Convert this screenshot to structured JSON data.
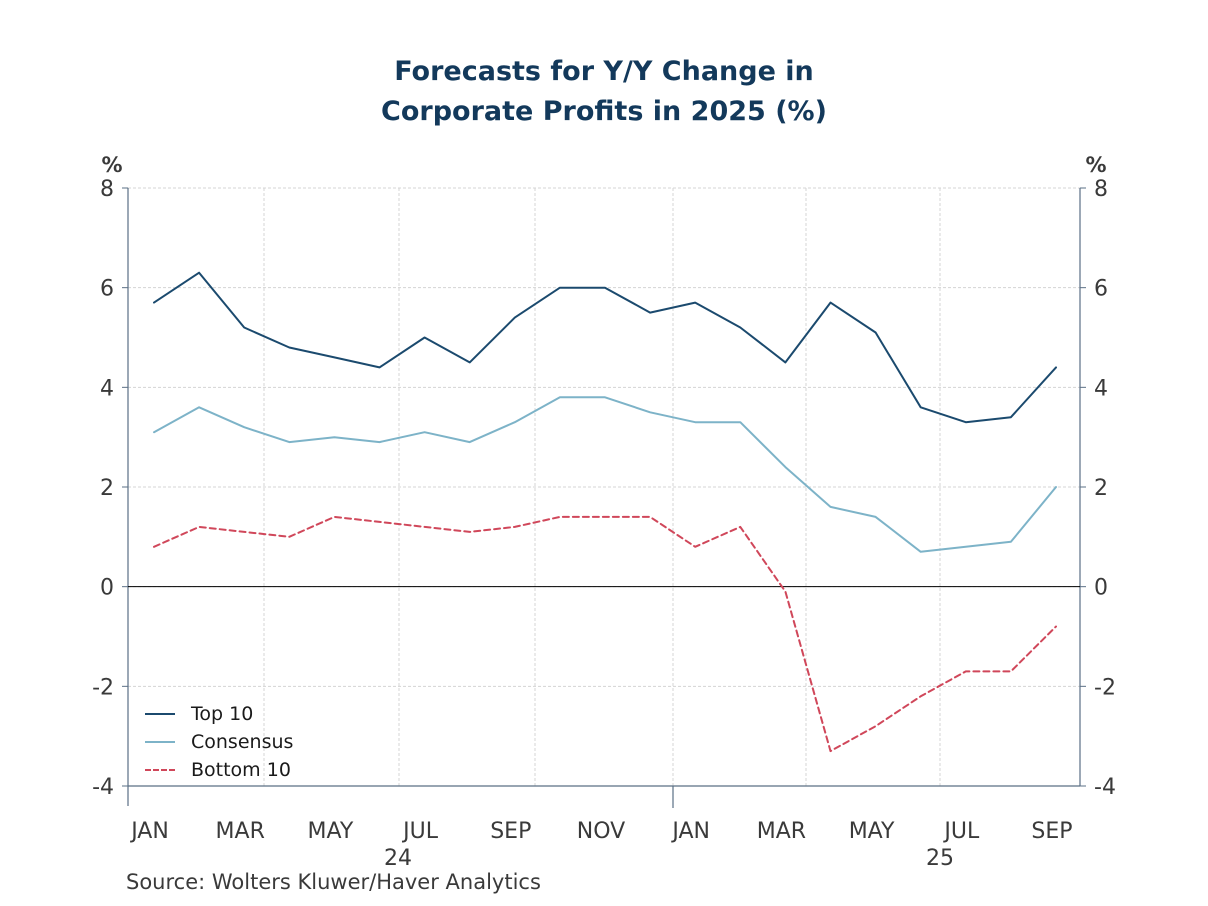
{
  "chart_data": {
    "type": "line",
    "title_lines": [
      "Forecasts for Y/Y Change in",
      "Corporate Profits in 2025 (%)"
    ],
    "left_unit": "%",
    "right_unit": "%",
    "ylim": [
      -4,
      8
    ],
    "y_ticks": [
      8,
      6,
      4,
      2,
      0,
      -2,
      -4
    ],
    "y_tick_labels": [
      "8",
      "6",
      "4",
      "2",
      "0",
      "-2",
      "-4"
    ],
    "x_tick_labels": [
      "JAN",
      "MAR",
      "MAY",
      "JUL",
      "SEP",
      "NOV",
      "JAN",
      "MAR",
      "MAY",
      "JUL",
      "SEP"
    ],
    "year_labels": [
      "24",
      "25"
    ],
    "x": [
      "2024-01",
      "2024-02",
      "2024-03",
      "2024-04",
      "2024-05",
      "2024-06",
      "2024-07",
      "2024-08",
      "2024-09",
      "2024-10",
      "2024-11",
      "2024-12",
      "2025-01",
      "2025-02",
      "2025-03",
      "2025-04",
      "2025-05",
      "2025-06",
      "2025-07",
      "2025-08",
      "2025-09"
    ],
    "series": [
      {
        "name": "Top 10",
        "color": "#1b4a6e",
        "dash": "solid",
        "values": [
          5.7,
          6.3,
          5.2,
          4.8,
          4.6,
          4.4,
          5.0,
          4.5,
          5.4,
          6.0,
          6.0,
          5.5,
          5.7,
          5.2,
          4.5,
          5.7,
          5.1,
          3.6,
          3.3,
          3.4,
          4.4
        ]
      },
      {
        "name": "Consensus",
        "color": "#7db3c8",
        "dash": "solid",
        "values": [
          3.1,
          3.6,
          3.2,
          2.9,
          3.0,
          2.9,
          3.1,
          2.9,
          3.3,
          3.8,
          3.8,
          3.5,
          3.3,
          3.3,
          2.4,
          1.6,
          1.4,
          0.7,
          0.8,
          0.9,
          2.0
        ]
      },
      {
        "name": "Bottom 10",
        "color": "#d0475a",
        "dash": "dashed",
        "values": [
          0.8,
          1.2,
          1.1,
          1.0,
          1.4,
          1.3,
          1.2,
          1.1,
          1.2,
          1.4,
          1.4,
          1.4,
          0.8,
          1.2,
          -0.1,
          -3.3,
          -2.8,
          -2.2,
          -1.7,
          -1.7,
          -0.8
        ]
      }
    ],
    "grid": true,
    "legend_position": "bottom-left",
    "source": "Source:  Wolters Kluwer/Haver Analytics"
  }
}
